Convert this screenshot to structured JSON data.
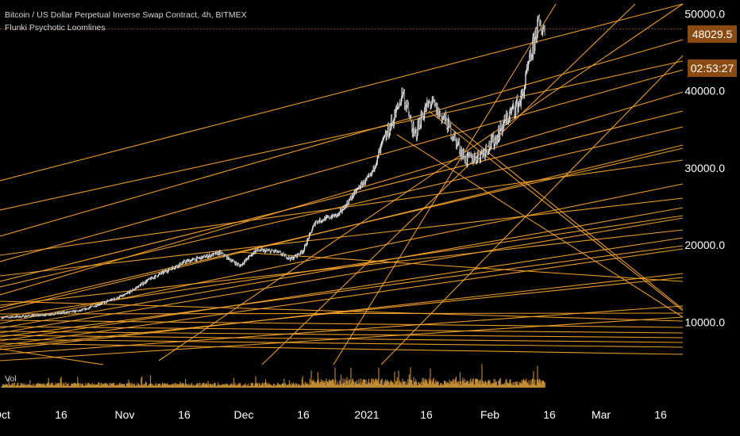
{
  "header": {
    "title": "Bitcoin / US Dollar Perpetual Inverse Swap Contract, 4h, BITMEX",
    "indicator": "Flunki Psychotic Loomlines"
  },
  "price_tags": {
    "last_price": "48029.5",
    "countdown": "02:53:27"
  },
  "volume_pane": {
    "label": "Vol"
  },
  "colors": {
    "background": "#000000",
    "loomline": "#f5a32a",
    "candle": "#e0e0e0",
    "volume": "#d49a3a",
    "price_tag_bg": "#8a4b12"
  },
  "chart_data": {
    "type": "candlestick",
    "title": "Bitcoin / US Dollar Perpetual Inverse Swap Contract, 4h, BITMEX",
    "y_axis": {
      "ticks": [
        "10000.0",
        "20000.0",
        "30000.0",
        "40000.0",
        "50000.0"
      ],
      "tick_values": [
        10000,
        20000,
        30000,
        40000,
        50000
      ],
      "range": [
        5000,
        51800
      ]
    },
    "x_axis": {
      "ticks": [
        "Oct",
        "16",
        "Nov",
        "16",
        "Dec",
        "16",
        "2021",
        "16",
        "Feb",
        "16",
        "Mar",
        "16"
      ],
      "tick_days": [
        0,
        15,
        31,
        46,
        61,
        76,
        92,
        107,
        123,
        138,
        151,
        166
      ],
      "range_days": [
        0,
        172
      ]
    },
    "last_price": 48029.5,
    "price_path": [
      {
        "day": 0,
        "price": 10600
      },
      {
        "day": 10,
        "price": 10900
      },
      {
        "day": 20,
        "price": 11500
      },
      {
        "day": 31,
        "price": 13500
      },
      {
        "day": 37,
        "price": 15500
      },
      {
        "day": 46,
        "price": 17800
      },
      {
        "day": 55,
        "price": 19000
      },
      {
        "day": 60,
        "price": 17300
      },
      {
        "day": 64,
        "price": 19300
      },
      {
        "day": 69,
        "price": 19200
      },
      {
        "day": 73,
        "price": 18200
      },
      {
        "day": 76,
        "price": 19300
      },
      {
        "day": 79,
        "price": 23000
      },
      {
        "day": 85,
        "price": 24000
      },
      {
        "day": 90,
        "price": 27500
      },
      {
        "day": 93,
        "price": 29000
      },
      {
        "day": 96,
        "price": 33000
      },
      {
        "day": 100,
        "price": 38000
      },
      {
        "day": 101,
        "price": 40000
      },
      {
        "day": 104,
        "price": 34000
      },
      {
        "day": 106,
        "price": 37000
      },
      {
        "day": 108,
        "price": 38500
      },
      {
        "day": 112,
        "price": 36000
      },
      {
        "day": 117,
        "price": 31000
      },
      {
        "day": 120,
        "price": 31500
      },
      {
        "day": 124,
        "price": 33500
      },
      {
        "day": 128,
        "price": 37000
      },
      {
        "day": 131,
        "price": 39000
      },
      {
        "day": 134,
        "price": 46000
      },
      {
        "day": 135,
        "price": 48500
      },
      {
        "day": 137,
        "price": 48029.5
      }
    ],
    "volume_spike_days": [
      78,
      84,
      88,
      95,
      99,
      100,
      103,
      108,
      121,
      134,
      135
    ]
  }
}
